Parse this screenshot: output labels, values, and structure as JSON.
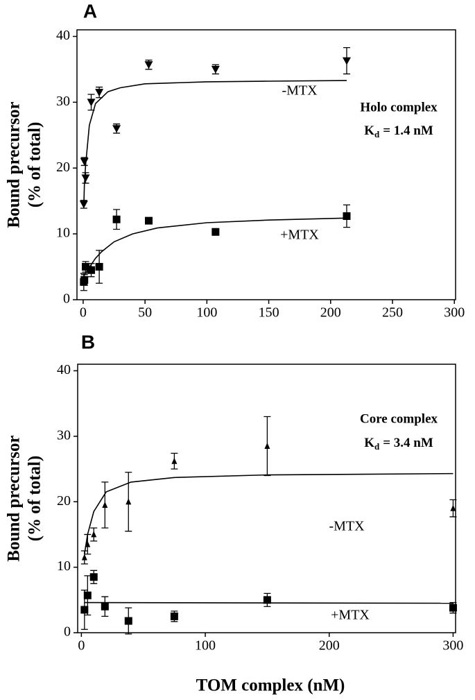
{
  "chart_data": [
    {
      "type": "scatter",
      "panel": "A",
      "y_label": [
        "Bound precursor",
        "(% of total)"
      ],
      "annotations": [
        "Holo complex"
      ],
      "kd": {
        "symbol": "K",
        "subscript": "d",
        "value": "= 1.4 nM"
      },
      "xlim": [
        -5,
        301
      ],
      "ylim": [
        0,
        41
      ],
      "xticks": [
        0,
        50,
        100,
        150,
        200,
        250,
        300
      ],
      "yticks": [
        0,
        10,
        20,
        30,
        40
      ],
      "series": [
        {
          "name": "-MTX",
          "marker": "triangle-down",
          "color": "#000000",
          "x": [
            0.5,
            1,
            2,
            6.5,
            13,
            27,
            53,
            107,
            213
          ],
          "values": [
            14.5,
            21,
            18.5,
            30,
            31.5,
            26,
            35.7,
            35,
            36.3
          ],
          "errors": [
            0.6,
            0.6,
            0.8,
            1.2,
            0.8,
            0.7,
            0.7,
            0.7,
            2
          ],
          "fit": {
            "x": [
              0.5,
              1,
              2,
              5,
              10,
              20,
              30,
              50,
              100,
              150,
              213
            ],
            "values": [
              14,
              17.5,
              20.5,
              26.5,
              29.8,
              31.6,
              32.2,
              32.8,
              33.1,
              33.2,
              33.3
            ]
          }
        },
        {
          "name": "+MTX",
          "marker": "square",
          "color": "#000000",
          "x": [
            0.5,
            1,
            2,
            6.5,
            13,
            27,
            53,
            107,
            213
          ],
          "values": [
            2.7,
            3,
            5,
            4.5,
            5,
            12.2,
            12,
            10.3,
            12.7
          ],
          "errors": [
            1.3,
            0.8,
            0.8,
            1,
            2.5,
            1.5,
            0.4,
            0.5,
            1.7
          ],
          "fit": {
            "x": [
              1,
              3,
              6,
              10,
              15,
              25,
              40,
              60,
              100,
              150,
              213
            ],
            "values": [
              3.8,
              4.3,
              5.2,
              6.3,
              7.3,
              8.8,
              10,
              10.9,
              11.7,
              12.1,
              12.4
            ]
          }
        }
      ]
    },
    {
      "type": "scatter",
      "panel": "B",
      "y_label": [
        "Bound precursor",
        "(% of total)"
      ],
      "x_label": "TOM complex (nM)",
      "annotations": [
        "Core complex"
      ],
      "kd": {
        "symbol": "K",
        "subscript": "d",
        "value": "= 3.4 nM"
      },
      "xlim": [
        -3,
        302
      ],
      "ylim": [
        0,
        41
      ],
      "xticks": [
        0,
        100,
        200,
        300
      ],
      "yticks": [
        0,
        10,
        20,
        30,
        40
      ],
      "series": [
        {
          "name": "-MTX",
          "marker": "triangle-up",
          "color": "#000000",
          "x": [
            2.5,
            5,
            10,
            19,
            38,
            75,
            150,
            300
          ],
          "values": [
            11.5,
            13.5,
            15,
            19.5,
            20,
            26.2,
            28.5,
            19
          ],
          "errors": [
            1,
            1.5,
            1,
            3.5,
            4.5,
            1.2,
            4.5,
            1.3
          ],
          "fit": {
            "x": [
              2.5,
              5,
              10,
              20,
              40,
              75,
              150,
              300
            ],
            "values": [
              12,
              15,
              18.5,
              21.5,
              23,
              23.7,
              24.1,
              24.3
            ]
          }
        },
        {
          "name": "+MTX",
          "marker": "square",
          "color": "#000000",
          "x": [
            2.5,
            5,
            10,
            19,
            38,
            75,
            150,
            300
          ],
          "values": [
            3.5,
            5.7,
            8.5,
            4,
            1.8,
            2.5,
            5,
            3.8
          ],
          "errors": [
            3,
            3,
            1,
            1.5,
            2,
            0.8,
            1,
            0.8
          ],
          "fit": {
            "x": [
              2.5,
              300
            ],
            "values": [
              4.6,
              4.5
            ]
          }
        }
      ]
    }
  ]
}
